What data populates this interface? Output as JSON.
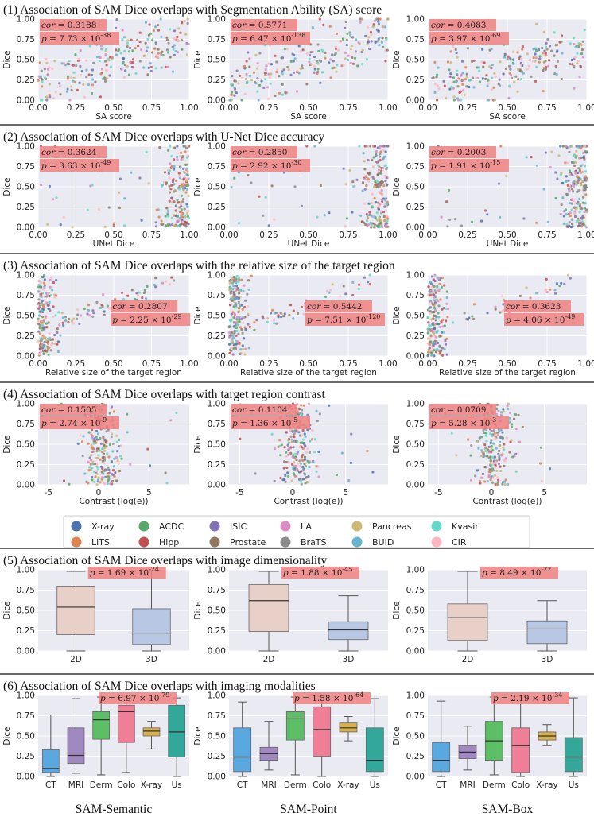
{
  "chart_data": {
    "type": "scatter",
    "columns": [
      "SAM-Semantic",
      "SAM-Point",
      "SAM-Box"
    ],
    "legend": [
      "X-ray",
      "ACDC",
      "ISIC",
      "LA",
      "Pancreas",
      "Kvasir",
      "LiTS",
      "Hipp",
      "Prostate",
      "BraTS",
      "BUID",
      "CIR"
    ],
    "colors": {
      "X-ray": "#4c72b0",
      "ACDC": "#55a868",
      "ISIC": "#8172b3",
      "LA": "#da8bc3",
      "Pancreas": "#ccb974",
      "Kvasir": "#64d8c8",
      "LiTS": "#dd8452",
      "Hipp": "#c44e52",
      "Prostate": "#937860",
      "BraTS": "#8c8c8c",
      "BUID": "#64b5cd",
      "CIR": "#ffb6c1",
      "annotation_bg": "#f08080",
      "plot_bg": "#eaeaf2"
    },
    "box_colors": {
      "2D": "#e8cfc8",
      "3D": "#b8c8e4",
      "CT": "#5aa8e0",
      "MRI": "#a088c0",
      "Derm": "#5cbf66",
      "Colo": "#f07e96",
      "X-ray": "#d8b04c",
      "Us": "#33a89a"
    },
    "panels": [
      {
        "title": "(1) Association of SAM Dice overlaps with Segmentation Ability (SA) score",
        "kind": "scatter",
        "xlabel": "SA score",
        "ylabel": "Dice",
        "xlim": [
          0,
          1
        ],
        "ylim": [
          0,
          1
        ],
        "xticks": [
          "0.00",
          "0.25",
          "0.50",
          "0.75",
          "1.00"
        ],
        "yticks": [
          "0.00",
          "0.25",
          "0.50",
          "0.75",
          "1.00"
        ],
        "ann_pos": "top-left",
        "cor": [
          "0.3188",
          "0.5771",
          "0.4083"
        ],
        "p": [
          [
            "7.73",
            "-38"
          ],
          [
            "6.47",
            "-138"
          ],
          [
            "3.97",
            "-69"
          ]
        ],
        "slope": [
          0.6,
          0.7,
          0.5
        ],
        "intercept": [
          0.2,
          0.15,
          0.15
        ]
      },
      {
        "title": "(2) Association of SAM Dice overlaps with U-Net Dice accuracy",
        "kind": "scatter",
        "xlabel": "UNet Dice",
        "ylabel": "Dice",
        "xlim": [
          0,
          1
        ],
        "ylim": [
          0,
          1
        ],
        "xticks": [
          "0.00",
          "0.25",
          "0.50",
          "0.75",
          "1.00"
        ],
        "yticks": [
          "0.00",
          "0.25",
          "0.50",
          "0.75",
          "1.00"
        ],
        "ann_pos": "top-left",
        "cor": [
          "0.3624",
          "0.2850",
          "0.2003"
        ],
        "p": [
          [
            "3.63",
            "-49"
          ],
          [
            "2.92",
            "-30"
          ],
          [
            "1.91",
            "-15"
          ]
        ],
        "slope": [
          0.4,
          0.3,
          0.2
        ],
        "intercept": [
          0.1,
          0.1,
          0.1
        ]
      },
      {
        "title": "(3) Association of SAM Dice overlaps with the relative size of the target region",
        "kind": "scatter",
        "xlabel": "Relative size of the target region",
        "ylabel": "Dice",
        "xlim": [
          0,
          1
        ],
        "ylim": [
          0,
          1
        ],
        "xticks": [
          "0.00",
          "0.25",
          "0.50",
          "0.75",
          "1.00"
        ],
        "yticks": [
          "0.00",
          "0.25",
          "0.50",
          "0.75",
          "1.00"
        ],
        "ann_pos": "right",
        "cor": [
          "0.2807",
          "0.5442",
          "0.3623"
        ],
        "p": [
          [
            "2.25",
            "-29"
          ],
          [
            "7.51",
            "-120"
          ],
          [
            "4.06",
            "-49"
          ]
        ],
        "slope": [
          0.8,
          0.9,
          0.9
        ],
        "intercept": [
          0.2,
          0.3,
          0.1
        ]
      },
      {
        "title": "(4) Association of SAM Dice overlaps with target region contrast",
        "kind": "scatter",
        "xlabel": "Contrast (log(e))",
        "ylabel": "Dice",
        "xlim": [
          -6,
          9
        ],
        "ylim": [
          0,
          1
        ],
        "xticks": [
          "-5",
          "0",
          "5"
        ],
        "xtick_vals": [
          -5,
          0,
          5
        ],
        "yticks": [
          "0.00",
          "0.25",
          "0.50",
          "0.75",
          "1.00"
        ],
        "ann_pos": "top-left",
        "cor": [
          "0.1505",
          "0.1104",
          "0.0709"
        ],
        "p": [
          [
            "2.74",
            "-9"
          ],
          [
            "1.36",
            "-5"
          ],
          [
            "5.28",
            "-3"
          ]
        ],
        "slope": [
          0.03,
          0.02,
          0.01
        ],
        "intercept": [
          0.4,
          0.4,
          0.4
        ]
      },
      {
        "title": "(5) Association of SAM Dice overlaps with image dimensionality",
        "kind": "box",
        "ylabel": "Dice",
        "ylim": [
          0,
          1
        ],
        "yticks": [
          "0.00",
          "0.25",
          "0.50",
          "0.75",
          "1.00"
        ],
        "categories": [
          "2D",
          "3D"
        ],
        "p": [
          [
            "1.69",
            "-24"
          ],
          [
            "1.88",
            "-45"
          ],
          [
            "8.49",
            "-22"
          ]
        ],
        "boxes": [
          [
            {
              "min": 0.0,
              "q1": 0.2,
              "med": 0.54,
              "q3": 0.8,
              "max": 0.98
            },
            {
              "min": 0.0,
              "q1": 0.08,
              "med": 0.22,
              "q3": 0.52,
              "max": 0.99
            }
          ],
          [
            {
              "min": 0.0,
              "q1": 0.24,
              "med": 0.62,
              "q3": 0.82,
              "max": 0.98
            },
            {
              "min": 0.0,
              "q1": 0.14,
              "med": 0.26,
              "q3": 0.36,
              "max": 0.68
            }
          ],
          [
            {
              "min": 0.0,
              "q1": 0.13,
              "med": 0.41,
              "q3": 0.58,
              "max": 0.98
            },
            {
              "min": 0.0,
              "q1": 0.09,
              "med": 0.27,
              "q3": 0.37,
              "max": 0.62
            }
          ]
        ]
      },
      {
        "title": "(6) Association of SAM Dice overlaps with imaging modalities",
        "kind": "box",
        "ylabel": "Dice",
        "ylim": [
          0,
          1
        ],
        "yticks": [
          "0.00",
          "0.25",
          "0.50",
          "0.75",
          "1.00"
        ],
        "categories": [
          "CT",
          "MRI",
          "Derm",
          "Colo",
          "X-ray",
          "Us"
        ],
        "p": [
          [
            "6.97",
            "-79"
          ],
          [
            "1.58",
            "-64"
          ],
          [
            "2.19",
            "-34"
          ]
        ],
        "boxes": [
          [
            {
              "min": 0.0,
              "q1": 0.05,
              "med": 0.1,
              "q3": 0.33,
              "max": 0.76
            },
            {
              "min": 0.04,
              "q1": 0.16,
              "med": 0.26,
              "q3": 0.6,
              "max": 0.96
            },
            {
              "min": 0.02,
              "q1": 0.46,
              "med": 0.7,
              "q3": 0.8,
              "max": 0.98
            },
            {
              "min": 0.05,
              "q1": 0.42,
              "med": 0.8,
              "q3": 0.88,
              "max": 0.99
            },
            {
              "min": 0.34,
              "q1": 0.5,
              "med": 0.56,
              "q3": 0.6,
              "max": 0.68
            },
            {
              "min": 0.0,
              "q1": 0.24,
              "med": 0.55,
              "q3": 0.88,
              "max": 0.97
            }
          ],
          [
            {
              "min": 0.0,
              "q1": 0.06,
              "med": 0.24,
              "q3": 0.6,
              "max": 0.92
            },
            {
              "min": 0.08,
              "q1": 0.2,
              "med": 0.28,
              "q3": 0.36,
              "max": 0.68
            },
            {
              "min": 0.02,
              "q1": 0.45,
              "med": 0.72,
              "q3": 0.8,
              "max": 0.98
            },
            {
              "min": 0.0,
              "q1": 0.25,
              "med": 0.58,
              "q3": 0.86,
              "max": 0.99
            },
            {
              "min": 0.44,
              "q1": 0.55,
              "med": 0.6,
              "q3": 0.66,
              "max": 0.74
            },
            {
              "min": 0.0,
              "q1": 0.06,
              "med": 0.2,
              "q3": 0.6,
              "max": 0.96
            }
          ],
          [
            {
              "min": 0.0,
              "q1": 0.06,
              "med": 0.2,
              "q3": 0.42,
              "max": 0.93
            },
            {
              "min": 0.08,
              "q1": 0.22,
              "med": 0.3,
              "q3": 0.38,
              "max": 0.62
            },
            {
              "min": 0.02,
              "q1": 0.2,
              "med": 0.44,
              "q3": 0.68,
              "max": 0.98
            },
            {
              "min": 0.0,
              "q1": 0.05,
              "med": 0.38,
              "q3": 0.6,
              "max": 0.99
            },
            {
              "min": 0.38,
              "q1": 0.45,
              "med": 0.5,
              "q3": 0.55,
              "max": 0.64
            },
            {
              "min": 0.0,
              "q1": 0.06,
              "med": 0.24,
              "q3": 0.48,
              "max": 0.97
            }
          ]
        ]
      }
    ]
  }
}
